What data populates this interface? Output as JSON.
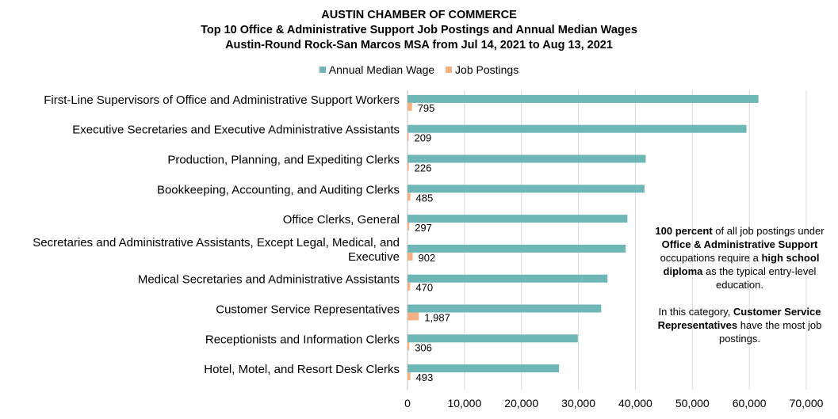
{
  "title": {
    "line1": "AUSTIN CHAMBER OF COMMERCE",
    "line2": "Top 10 Office  & Administrative  Support Job Postings and Annual Median Wages",
    "line3": "Austin-Round Rock-San Marcos MSA from Jul 14, 2021 to Aug 13, 2021"
  },
  "colors": {
    "wage": "#6FB7B7",
    "postings": "#F4B183",
    "grid": "#D9D9D9"
  },
  "chart_data": {
    "type": "bar",
    "orientation": "horizontal",
    "categories": [
      "First-Line Supervisors of Office and Administrative Support Workers",
      "Executive Secretaries and Executive Administrative Assistants",
      "Production, Planning, and Expediting Clerks",
      "Bookkeeping, Accounting, and Auditing Clerks",
      "Office Clerks, General",
      "Secretaries and Administrative Assistants, Except Legal, Medical, and Executive",
      "Medical Secretaries and Administrative Assistants",
      "Customer Service Representatives",
      "Receptionists and Information Clerks",
      "Hotel, Motel, and Resort Desk Clerks"
    ],
    "category_lines": [
      [
        "First-Line Supervisors of Office and Administrative Support Workers"
      ],
      [
        "Executive Secretaries and Executive Administrative Assistants"
      ],
      [
        "Production, Planning, and Expediting Clerks"
      ],
      [
        "Bookkeeping, Accounting, and Auditing Clerks"
      ],
      [
        "Office Clerks, General"
      ],
      [
        "Secretaries and Administrative Assistants, Except Legal, Medical, and",
        "Executive"
      ],
      [
        "Medical Secretaries and Administrative Assistants"
      ],
      [
        "Customer Service Representatives"
      ],
      [
        "Receptionists and Information Clerks"
      ],
      [
        "Hotel, Motel, and Resort Desk Clerks"
      ]
    ],
    "series": [
      {
        "name": "Annual Median Wage",
        "values": [
          61600,
          59500,
          41800,
          41600,
          38600,
          38300,
          35100,
          34000,
          29900,
          26600
        ]
      },
      {
        "name": "Job Postings",
        "values": [
          795,
          209,
          226,
          485,
          297,
          902,
          470,
          1987,
          306,
          493
        ],
        "labels": [
          "795",
          "209",
          "226",
          "485",
          "297",
          "902",
          "470",
          "1,987",
          "306",
          "493"
        ]
      }
    ],
    "xlim": [
      0,
      70000
    ],
    "xticks": [
      0,
      10000,
      20000,
      30000,
      40000,
      50000,
      60000,
      70000
    ],
    "xtick_labels": [
      "0",
      "10,000",
      "20,000",
      "30,000",
      "40,000",
      "50,000",
      "60,000",
      "70,000"
    ],
    "grid": "vertical",
    "legend": "top"
  },
  "note": {
    "p1": [
      {
        "text": "100 percent",
        "bold": true
      },
      {
        "text": " of all job postings under ",
        "bold": false
      },
      {
        "text": "Office & Administrative Support",
        "bold": true
      },
      {
        "text": " occupations require a ",
        "bold": false
      },
      {
        "text": "high school diploma",
        "bold": true
      },
      {
        "text": "  as the typical entry-level education.",
        "bold": false
      }
    ],
    "p2": [
      {
        "text": "In this category, ",
        "bold": false
      },
      {
        "text": "Customer Service Representatives",
        "bold": true
      },
      {
        "text": " have the most job postings.",
        "bold": false
      }
    ]
  }
}
